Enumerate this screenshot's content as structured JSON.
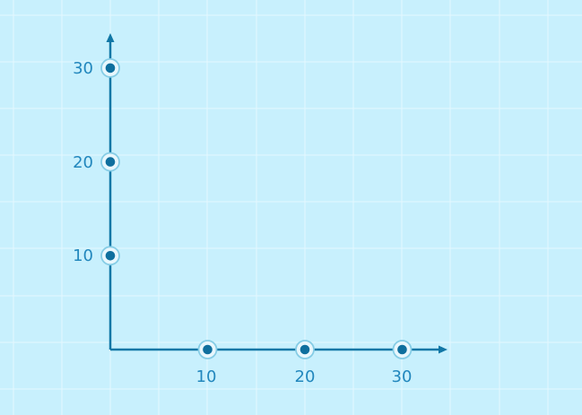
{
  "colors": {
    "background": "#c8f0fd",
    "grid": "#e4f8fe",
    "axis": "#1177a6",
    "point": "#0f6f9e",
    "halo": "#e8f7fd",
    "halo_stroke": "#86cde6",
    "label": "#2287bd"
  },
  "axes": {
    "x_ticks": [
      "10",
      "20",
      "30"
    ],
    "y_ticks": [
      "10",
      "20",
      "30"
    ],
    "x_range": [
      0,
      34
    ],
    "y_range": [
      0,
      34
    ]
  },
  "chart_data": {
    "type": "scatter",
    "title": "",
    "xlabel": "",
    "ylabel": "",
    "xlim": [
      0,
      34
    ],
    "ylim": [
      0,
      34
    ],
    "grid": true,
    "points": [
      {
        "x": 10,
        "y": 0
      },
      {
        "x": 20,
        "y": 0
      },
      {
        "x": 30,
        "y": 0
      },
      {
        "x": 0,
        "y": 10
      },
      {
        "x": 0,
        "y": 20
      },
      {
        "x": 0,
        "y": 30
      }
    ]
  }
}
